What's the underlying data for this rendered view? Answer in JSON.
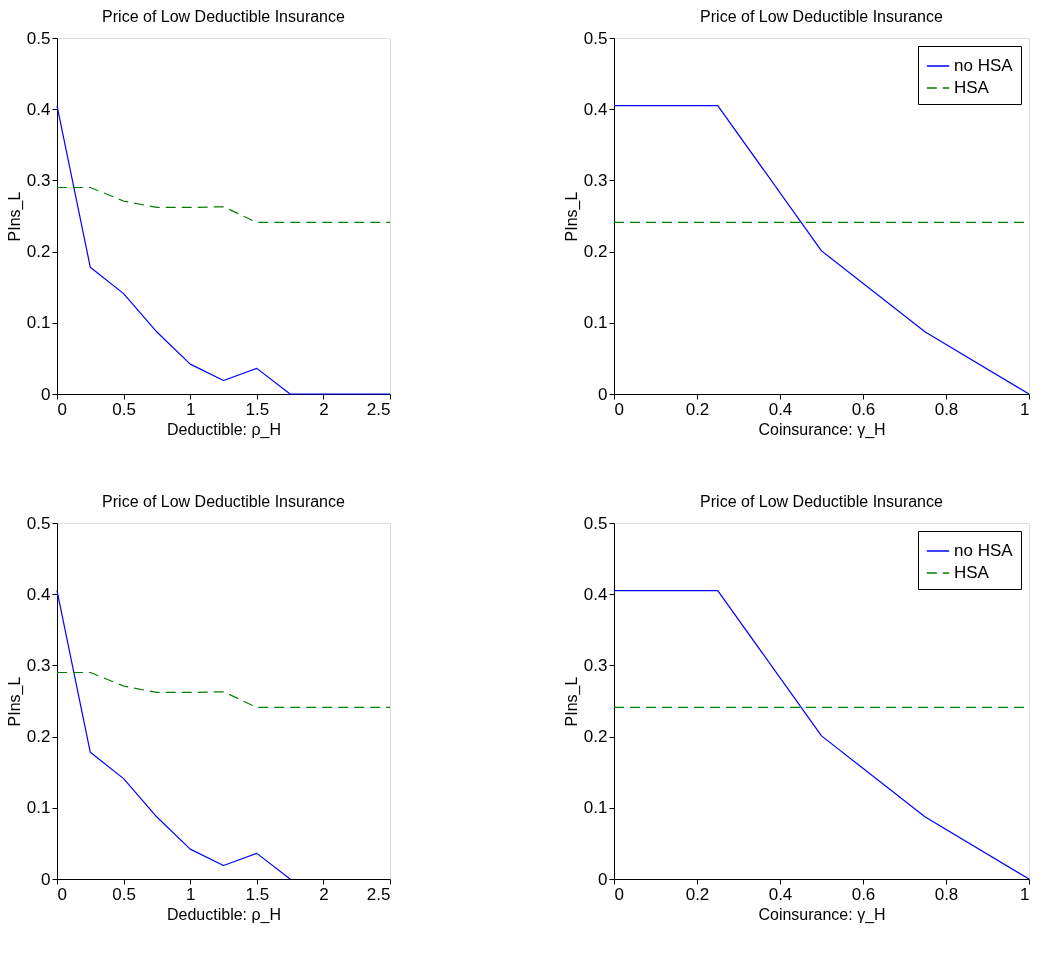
{
  "chart_data": [
    {
      "type": "line",
      "title": "Price of Low Deductible Insurance",
      "xlabel": "Deductible: ρ_H",
      "ylabel": "PIns_L",
      "x": [
        0,
        0.25,
        0.5,
        0.75,
        1,
        1.25,
        1.5,
        1.75,
        2,
        2.25,
        2.5
      ],
      "xlim": [
        0,
        2.5
      ],
      "xticks": [
        0,
        0.5,
        1,
        1.5,
        2,
        2.5
      ],
      "ylim": [
        0,
        0.5
      ],
      "yticks": [
        0,
        0.1,
        0.2,
        0.3,
        0.4,
        0.5
      ],
      "grid": false,
      "legend": false,
      "series": [
        {
          "color": "#0000ff",
          "line_style": "solid",
          "values": [
            0.405,
            0.178,
            0.141,
            0.087,
            0.042,
            0.019,
            0.036,
            0,
            0,
            0,
            0
          ]
        },
        {
          "color": "#008000",
          "line_style": "dashed",
          "values": [
            0.29,
            0.29,
            0.271,
            0.262,
            0.262,
            0.263,
            0.241,
            0.241,
            0.241,
            0.241,
            0.241
          ]
        }
      ]
    },
    {
      "type": "line",
      "title": "Price of Low Deductible Insurance",
      "xlabel": "Coinsurance: γ_H",
      "ylabel": "PIns_L",
      "x": [
        0,
        0.25,
        0.5,
        0.75,
        1
      ],
      "xlim": [
        0,
        1
      ],
      "xticks": [
        0,
        0.2,
        0.4,
        0.6,
        0.8,
        1
      ],
      "ylim": [
        0,
        0.5
      ],
      "yticks": [
        0,
        0.1,
        0.2,
        0.3,
        0.4,
        0.5
      ],
      "grid": false,
      "legend": "top right",
      "series": [
        {
          "name": "no HSA",
          "color": "#0000ff",
          "line_style": "solid",
          "values": [
            0.405,
            0.405,
            0.201,
            0.087,
            0
          ]
        },
        {
          "name": "HSA",
          "color": "#008000",
          "line_style": "dashed",
          "values": [
            0.241,
            0.241,
            0.241,
            0.241,
            0.241
          ]
        }
      ]
    },
    {
      "type": "line",
      "title": "Price of Low Deductible Insurance",
      "xlabel": "Deductible: ρ_H",
      "ylabel": "PIns_L",
      "x": [
        0,
        0.25,
        0.5,
        0.75,
        1,
        1.25,
        1.5,
        1.75,
        2,
        2.25,
        2.5
      ],
      "xlim": [
        0,
        2.5
      ],
      "xticks": [
        0,
        0.5,
        1,
        1.5,
        2,
        2.5
      ],
      "ylim": [
        0,
        0.5
      ],
      "yticks": [
        0,
        0.1,
        0.2,
        0.3,
        0.4,
        0.5
      ],
      "grid": false,
      "legend": false,
      "series": [
        {
          "color": "#0000ff",
          "line_style": "solid",
          "values": [
            0.405,
            0.178,
            0.141,
            0.087,
            0.042,
            0.019,
            0.036,
            0,
            null,
            null,
            null
          ]
        },
        {
          "color": "#008000",
          "line_style": "dashed",
          "values": [
            0.29,
            0.29,
            0.271,
            0.262,
            0.262,
            0.263,
            0.241,
            0.241,
            0.241,
            0.241,
            0.241
          ]
        }
      ]
    },
    {
      "type": "line",
      "title": "Price of Low Deductible Insurance",
      "xlabel": "Coinsurance: γ_H",
      "ylabel": "PIns_L",
      "x": [
        0,
        0.25,
        0.5,
        0.75,
        1
      ],
      "xlim": [
        0,
        1
      ],
      "xticks": [
        0,
        0.2,
        0.4,
        0.6,
        0.8,
        1
      ],
      "ylim": [
        0,
        0.5
      ],
      "yticks": [
        0,
        0.1,
        0.2,
        0.3,
        0.4,
        0.5
      ],
      "grid": false,
      "legend": "top right",
      "series": [
        {
          "name": "no HSA",
          "color": "#0000ff",
          "line_style": "solid",
          "values": [
            0.405,
            0.405,
            0.201,
            0.087,
            0
          ]
        },
        {
          "name": "HSA",
          "color": "#008000",
          "line_style": "dashed",
          "values": [
            0.241,
            0.241,
            0.241,
            0.241,
            0.241
          ]
        }
      ]
    }
  ]
}
